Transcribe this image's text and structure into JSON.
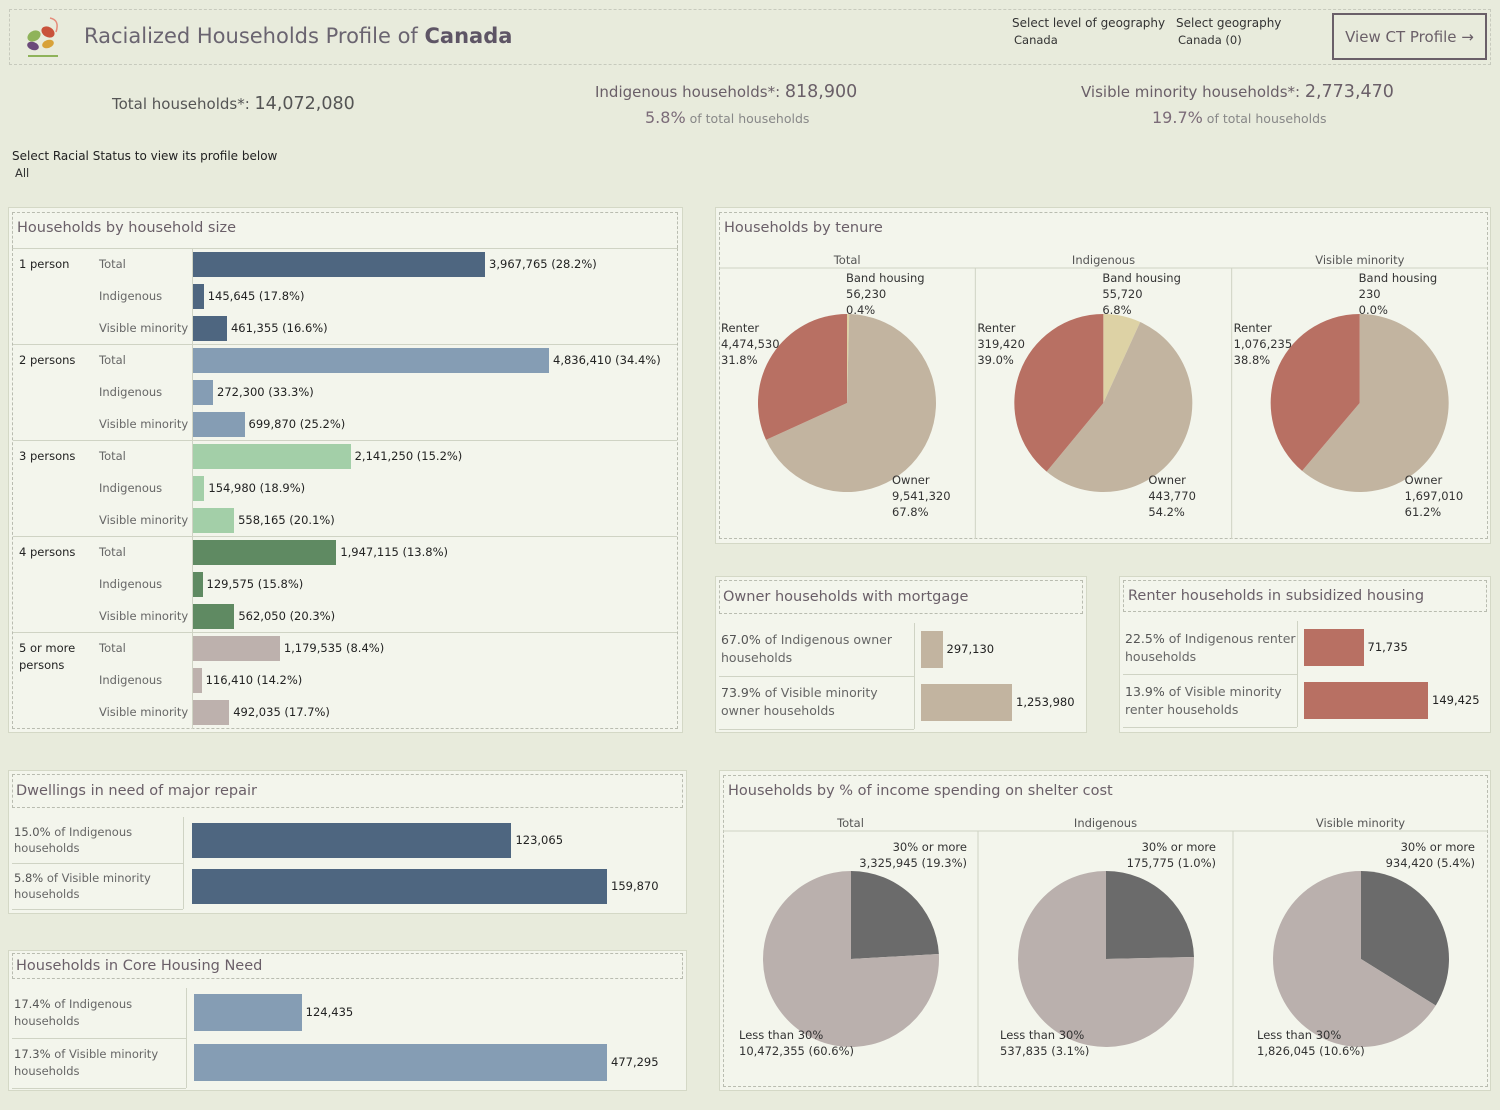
{
  "header": {
    "title_prefix": "Racialized Households Profile of ",
    "title_place": "Canada",
    "geo_level_label": "Select level of geography",
    "geo_level_value": "Canada",
    "geo_label": "Select geography",
    "geo_value": "Canada (0)",
    "view_button": "View CT Profile →"
  },
  "kpis": {
    "total_label": "Total households*: ",
    "total_value": "14,072,080",
    "indig_label": "Indigenous households*: ",
    "indig_value": "818,900",
    "indig_pct": "5.8%",
    "indig_sub": " of total households",
    "vm_label": "Visible minority households*: ",
    "vm_value": "2,773,470",
    "vm_pct": "19.7%",
    "vm_sub": " of total households"
  },
  "filter": {
    "label": "Select Racial Status to view its profile below",
    "value": "All"
  },
  "colors": {
    "dark_blue": "#4e6680",
    "light_blue": "#859db4",
    "light_green": "#a3cfa8",
    "dark_green": "#5f8a62",
    "grey": "#bdb1ad",
    "tan": "#c2b4a0",
    "renter": "#b87063",
    "band_indig": "#ddd2a5",
    "cost_high": "#6b6b6b",
    "cost_low": "#bab0ad"
  },
  "chart_data": [
    {
      "type": "bar",
      "title": "Households by household size",
      "groups": [
        "1 person",
        "2 persons",
        "3 persons",
        "4 persons",
        "5 or more persons"
      ],
      "series_labels": [
        "Total",
        "Indigenous",
        "Visible minority"
      ],
      "rows": [
        {
          "group": "1 person",
          "series": "Total",
          "value": 3967765,
          "label": "3,967,765 (28.2%)",
          "color": "#4e6680"
        },
        {
          "group": "1 person",
          "series": "Indigenous",
          "value": 145645,
          "label": "145,645 (17.8%)",
          "color": "#4e6680"
        },
        {
          "group": "1 person",
          "series": "Visible minority",
          "value": 461355,
          "label": "461,355 (16.6%)",
          "color": "#4e6680"
        },
        {
          "group": "2 persons",
          "series": "Total",
          "value": 4836410,
          "label": "4,836,410 (34.4%)",
          "color": "#859db4"
        },
        {
          "group": "2 persons",
          "series": "Indigenous",
          "value": 272300,
          "label": "272,300 (33.3%)",
          "color": "#859db4"
        },
        {
          "group": "2 persons",
          "series": "Visible minority",
          "value": 699870,
          "label": "699,870 (25.2%)",
          "color": "#859db4"
        },
        {
          "group": "3 persons",
          "series": "Total",
          "value": 2141250,
          "label": "2,141,250 (15.2%)",
          "color": "#a3cfa8"
        },
        {
          "group": "3 persons",
          "series": "Indigenous",
          "value": 154980,
          "label": "154,980 (18.9%)",
          "color": "#a3cfa8"
        },
        {
          "group": "3 persons",
          "series": "Visible minority",
          "value": 558165,
          "label": "558,165 (20.1%)",
          "color": "#a3cfa8"
        },
        {
          "group": "4 persons",
          "series": "Total",
          "value": 1947115,
          "label": "1,947,115 (13.8%)",
          "color": "#5f8a62"
        },
        {
          "group": "4 persons",
          "series": "Indigenous",
          "value": 129575,
          "label": "129,575 (15.8%)",
          "color": "#5f8a62"
        },
        {
          "group": "4 persons",
          "series": "Visible minority",
          "value": 562050,
          "label": "562,050 (20.3%)",
          "color": "#5f8a62"
        },
        {
          "group": "5 or more persons",
          "series": "Total",
          "value": 1179535,
          "label": "1,179,535 (8.4%)",
          "color": "#bdb1ad"
        },
        {
          "group": "5 or more persons",
          "series": "Indigenous",
          "value": 116410,
          "label": "116,410 (14.2%)",
          "color": "#bdb1ad"
        },
        {
          "group": "5 or more persons",
          "series": "Visible minority",
          "value": 492035,
          "label": "492,035 (17.7%)",
          "color": "#bdb1ad"
        }
      ]
    },
    {
      "type": "pie",
      "title": "Households by tenure",
      "pies": [
        {
          "name": "Total",
          "slices": [
            {
              "label": "Band housing",
              "value": 56230,
              "pct": "0.4%",
              "display": "56,230",
              "color": "#ddd2a5"
            },
            {
              "label": "Owner",
              "value": 9541320,
              "pct": "67.8%",
              "display": "9,541,320",
              "color": "#c2b4a0"
            },
            {
              "label": "Renter",
              "value": 4474530,
              "pct": "31.8%",
              "display": "4,474,530",
              "color": "#b87063"
            }
          ]
        },
        {
          "name": "Indigenous",
          "slices": [
            {
              "label": "Band housing",
              "value": 55720,
              "pct": "6.8%",
              "display": "55,720",
              "color": "#ddd2a5"
            },
            {
              "label": "Owner",
              "value": 443770,
              "pct": "54.2%",
              "display": "443,770",
              "color": "#c2b4a0"
            },
            {
              "label": "Renter",
              "value": 319420,
              "pct": "39.0%",
              "display": "319,420",
              "color": "#b87063"
            }
          ]
        },
        {
          "name": "Visible minority",
          "slices": [
            {
              "label": "Band housing",
              "value": 230,
              "pct": "0.0%",
              "display": "230",
              "color": "#ddd2a5"
            },
            {
              "label": "Owner",
              "value": 1697010,
              "pct": "61.2%",
              "display": "1,697,010",
              "color": "#c2b4a0"
            },
            {
              "label": "Renter",
              "value": 1076235,
              "pct": "38.8%",
              "display": "1,076,235",
              "color": "#b87063"
            }
          ]
        }
      ]
    },
    {
      "type": "bar",
      "title": "Owner households with mortgage",
      "rows": [
        {
          "pct": "67.0%",
          "text": " of Indigenous owner households",
          "value": 297130,
          "label": "297,130",
          "color": "#c2b4a0"
        },
        {
          "pct": "73.9%",
          "text": " of Visible minority owner households",
          "value": 1253980,
          "label": "1,253,980",
          "color": "#c2b4a0"
        }
      ]
    },
    {
      "type": "bar",
      "title": "Renter households in subsidized housing",
      "rows": [
        {
          "pct": "22.5%",
          "text": " of Indigenous renter households",
          "value": 71735,
          "label": "71,735",
          "color": "#b87063"
        },
        {
          "pct": "13.9%",
          "text": " of Visible minority renter households",
          "value": 149425,
          "label": "149,425",
          "color": "#b87063"
        }
      ]
    },
    {
      "type": "bar",
      "title": "Dwellings in need of major repair",
      "rows": [
        {
          "pct": "15.0%",
          "text": " of Indigenous households",
          "value": 123065,
          "label": "123,065",
          "color": "#4e6680"
        },
        {
          "pct": "5.8%",
          "text": " of Visible minority households",
          "value": 159870,
          "label": "159,870",
          "color": "#4e6680"
        }
      ]
    },
    {
      "type": "bar",
      "title": "Households in Core Housing Need",
      "rows": [
        {
          "pct": "17.4%",
          "text": " of  Indigenous households",
          "value": 124435,
          "label": "124,435",
          "color": "#859db4"
        },
        {
          "pct": "17.3%",
          "text": " of  Visible minority households",
          "value": 477295,
          "label": "477,295",
          "color": "#859db4"
        }
      ]
    },
    {
      "type": "pie",
      "title": "Households by % of income spending on shelter cost",
      "pies": [
        {
          "name": "Total",
          "slices": [
            {
              "label": "30% or more",
              "value": 3325945,
              "display": "3,325,945 (19.3%)",
              "color": "#6b6b6b"
            },
            {
              "label": "Less than 30%",
              "value": 10472355,
              "display": "10,472,355 (60.6%)",
              "color": "#bab0ad"
            }
          ]
        },
        {
          "name": "Indigenous",
          "slices": [
            {
              "label": "30% or more",
              "value": 175775,
              "display": "175,775 (1.0%)",
              "color": "#6b6b6b"
            },
            {
              "label": "Less than 30%",
              "value": 537835,
              "display": "537,835 (3.1%)",
              "color": "#bab0ad"
            }
          ]
        },
        {
          "name": "Visible minority",
          "slices": [
            {
              "label": "30% or more",
              "value": 934420,
              "display": "934,420 (5.4%)",
              "color": "#6b6b6b"
            },
            {
              "label": "Less than 30%",
              "value": 1826045,
              "display": "1,826,045 (10.6%)",
              "color": "#bab0ad"
            }
          ]
        }
      ]
    }
  ]
}
